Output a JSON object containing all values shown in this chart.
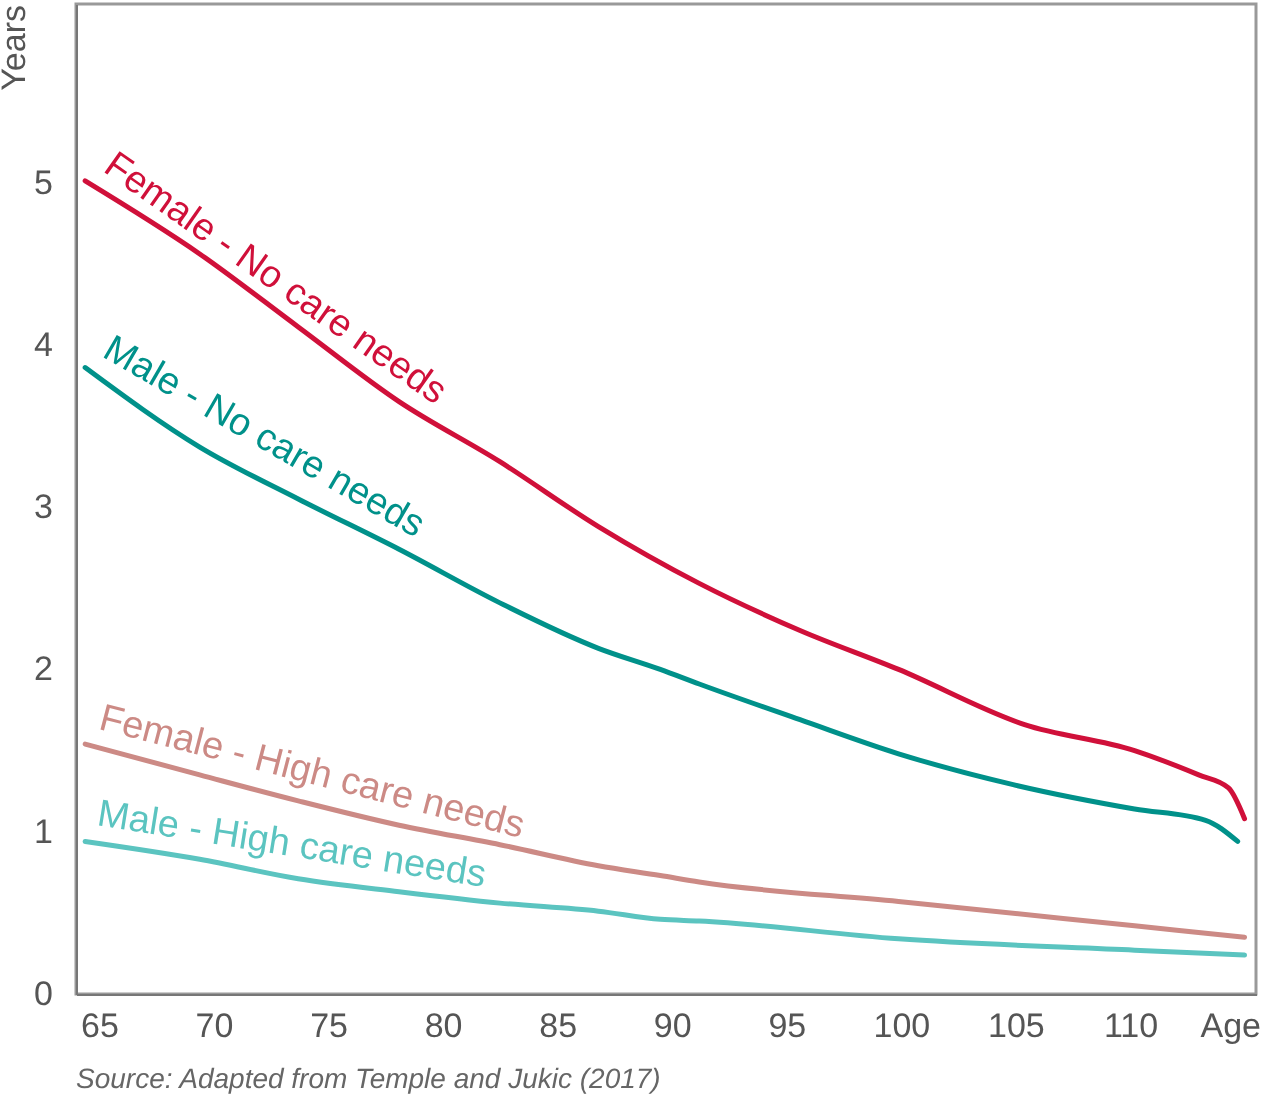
{
  "chart_data": {
    "type": "line",
    "xlabel": "Age",
    "ylabel": "Years",
    "annotations": [
      "Source: Adapted from Temple and Jukic (2017)"
    ],
    "xlim": [
      64,
      115.5
    ],
    "xticks": [
      65,
      70,
      75,
      80,
      85,
      90,
      95,
      100,
      105,
      110
    ],
    "ylim": [
      0,
      6.1
    ],
    "yticks": [
      0,
      1,
      2,
      3,
      4,
      5
    ],
    "grid": false,
    "line_style": "solid",
    "series": [
      {
        "name": "Female - No care needs",
        "color": "#d0103a",
        "x": [
          64.4,
          69.4,
          73.7,
          78.1,
          82.5,
          86.8,
          91.2,
          95.6,
          99.9,
          105.4,
          110.2,
          113.0,
          114.3,
          115.0
        ],
        "values": [
          5.01,
          4.56,
          4.11,
          3.65,
          3.28,
          2.88,
          2.53,
          2.24,
          2.0,
          1.66,
          1.5,
          1.35,
          1.27,
          1.08
        ]
      },
      {
        "name": "Male - No care needs",
        "color": "#00918a",
        "x": [
          64.4,
          69.4,
          73.7,
          78.1,
          82.5,
          86.8,
          89.5,
          91.2,
          95.6,
          99.9,
          104.9,
          110.2,
          113.3,
          114.7
        ],
        "values": [
          3.86,
          3.37,
          3.05,
          2.74,
          2.41,
          2.13,
          2.0,
          1.91,
          1.69,
          1.48,
          1.29,
          1.14,
          1.07,
          0.94
        ]
      },
      {
        "name": "Female - High care needs",
        "color": "#cc8a85",
        "x": [
          64.4,
          69.4,
          73.7,
          78.1,
          82.5,
          86.8,
          89.5,
          91.2,
          99.9,
          110.2,
          115.0
        ],
        "values": [
          1.54,
          1.35,
          1.19,
          1.04,
          0.92,
          0.79,
          0.73,
          0.69,
          0.57,
          0.42,
          0.35
        ]
      },
      {
        "name": "Male - High care needs",
        "color": "#5bc4c0",
        "x": [
          64.4,
          69.4,
          73.7,
          78.1,
          82.5,
          86.8,
          89.5,
          91.2,
          99.9,
          110.2,
          115.0
        ],
        "values": [
          0.94,
          0.83,
          0.71,
          0.63,
          0.56,
          0.51,
          0.46,
          0.45,
          0.34,
          0.27,
          0.24
        ]
      }
    ]
  }
}
